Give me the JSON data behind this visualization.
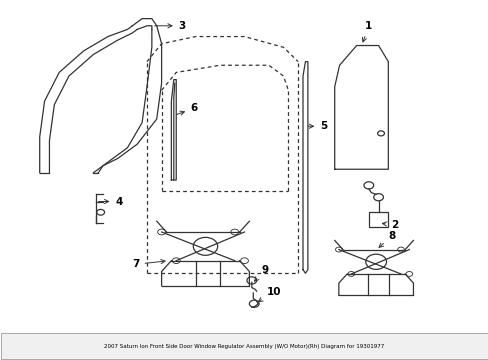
{
  "bg_color": "#ffffff",
  "line_color": "#333333",
  "label_color": "#000000",
  "title": "2007 Saturn Ion Front Side Door Window Regulator Assembly (W/O Motor)(Rh) Diagram for 19301977",
  "fig_width": 4.89,
  "fig_height": 3.6,
  "dpi": 100
}
